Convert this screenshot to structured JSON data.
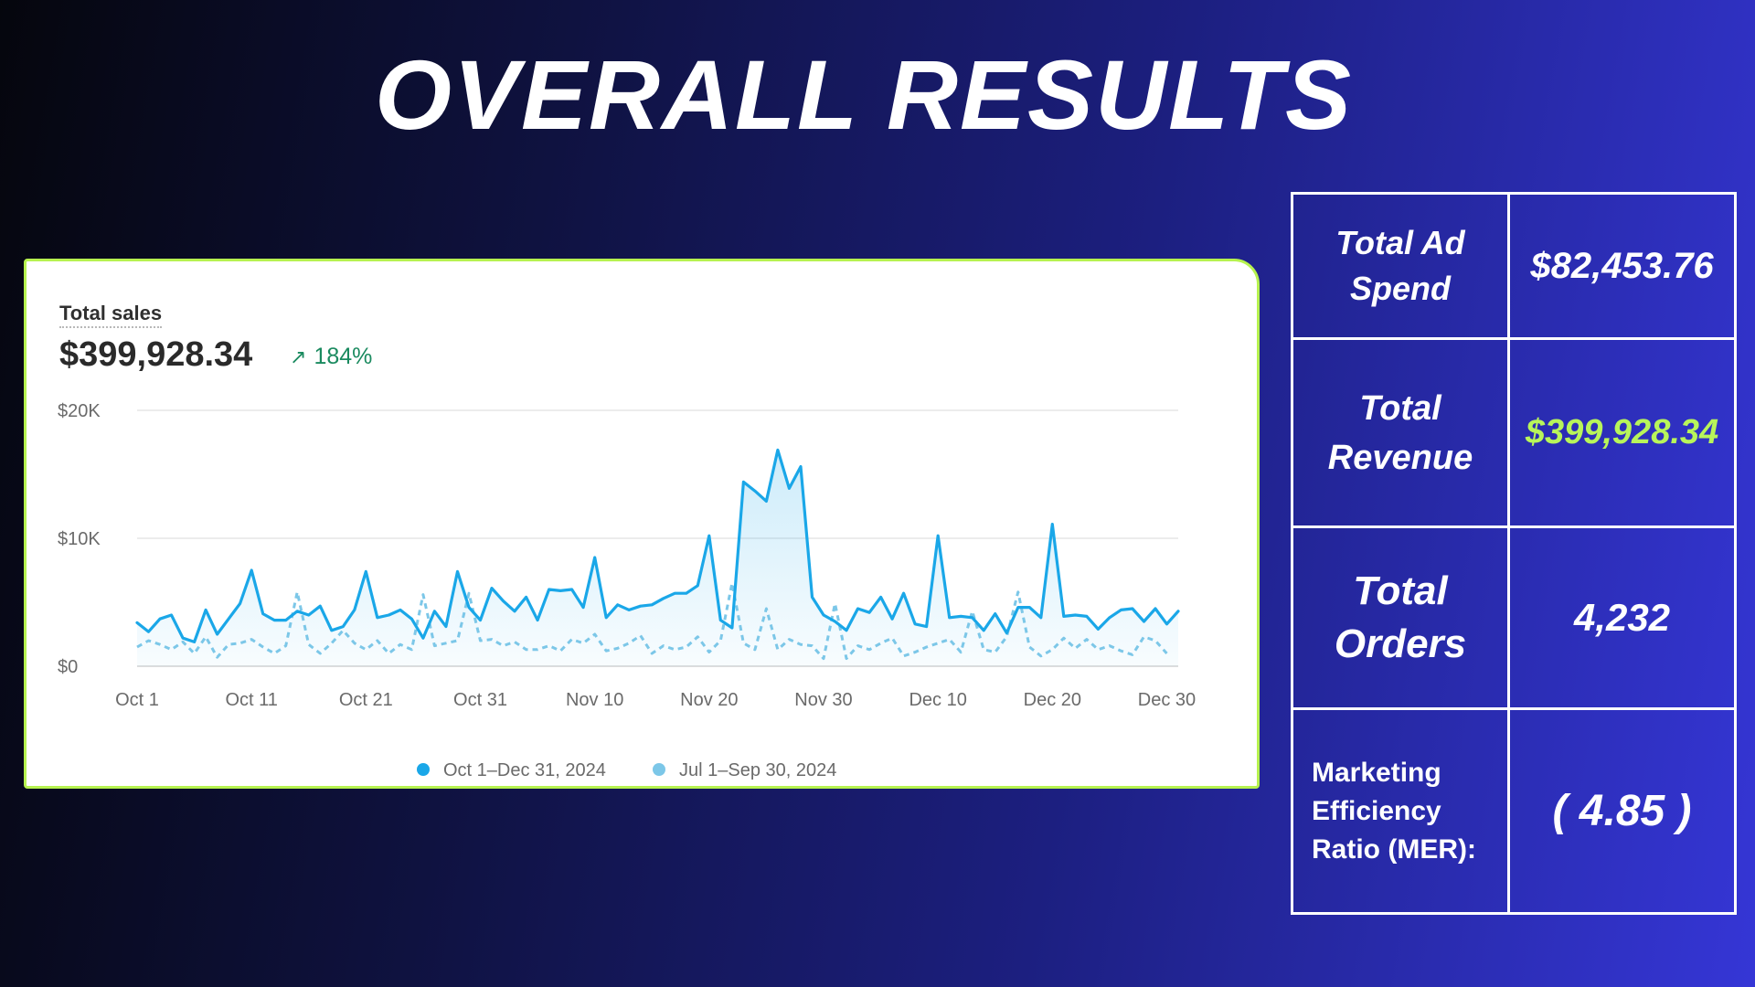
{
  "page": {
    "title": "OVERALL RESULTS"
  },
  "card": {
    "label": "Total sales",
    "total": "$399,928.34",
    "change": "184%"
  },
  "stats": [
    {
      "label": "Total Ad Spend",
      "value": "$82,453.76",
      "value_color": "#ffffff"
    },
    {
      "label": "Total Revenue",
      "value": "$399,928.34",
      "value_color": "#b8f55a"
    },
    {
      "label": "Total Orders",
      "value": "4,232",
      "value_color": "#ffffff"
    },
    {
      "label": "Marketing Efficiency Ratio (MER):",
      "value": "( 4.85 )",
      "value_color": "#ffffff"
    }
  ],
  "chart_data": {
    "type": "line",
    "title": "Total sales",
    "ylim": [
      0,
      20000
    ],
    "y_ticks": [
      {
        "value": 0,
        "label": "$0"
      },
      {
        "value": 10000,
        "label": "$10K"
      },
      {
        "value": 20000,
        "label": "$20K"
      }
    ],
    "x_ticks": [
      {
        "day": 0,
        "label": "Oct 1"
      },
      {
        "day": 10,
        "label": "Oct 11"
      },
      {
        "day": 20,
        "label": "Oct 21"
      },
      {
        "day": 30,
        "label": "Oct 31"
      },
      {
        "day": 40,
        "label": "Nov 10"
      },
      {
        "day": 50,
        "label": "Nov 20"
      },
      {
        "day": 60,
        "label": "Nov 30"
      },
      {
        "day": 70,
        "label": "Dec 10"
      },
      {
        "day": 80,
        "label": "Dec 20"
      },
      {
        "day": 90,
        "label": "Dec 30"
      }
    ],
    "grid": true,
    "legend_position": "bottom-center",
    "series": [
      {
        "name": "Oct 1–Dec 31, 2024",
        "color": "#1aa7e8",
        "style": "solid",
        "values": [
          3400,
          2700,
          3700,
          4000,
          2200,
          1900,
          4400,
          2500,
          3700,
          4900,
          7500,
          4100,
          3600,
          3600,
          4300,
          4000,
          4700,
          2800,
          3100,
          4400,
          7400,
          3800,
          4000,
          4400,
          3700,
          2200,
          4300,
          3100,
          7400,
          4600,
          3600,
          6100,
          5100,
          4300,
          5400,
          3600,
          6000,
          5900,
          6000,
          4600,
          8500,
          3800,
          4800,
          4400,
          4700,
          4800,
          5300,
          5700,
          5700,
          6300,
          10200,
          3600,
          3000,
          14400,
          13700,
          12900,
          16900,
          13900,
          15600,
          5400,
          4000,
          3500,
          2800,
          4500,
          4200,
          5400,
          3700,
          5700,
          3300,
          3100,
          10200,
          3800,
          3900,
          3800,
          2800,
          4100,
          2600,
          4600,
          4600,
          3800,
          11100,
          3900,
          4000,
          3900,
          2900,
          3800,
          4400,
          4500,
          3500,
          4500,
          3300,
          4300
        ]
      },
      {
        "name": "Jul 1–Sep 30, 2024",
        "color": "#7cc7e8",
        "style": "dashed",
        "values": [
          1500,
          2000,
          1700,
          1300,
          1900,
          1000,
          2300,
          700,
          1700,
          1800,
          2100,
          1500,
          1000,
          1600,
          5800,
          1700,
          1000,
          1800,
          2800,
          1800,
          1300,
          2000,
          1000,
          1700,
          1300,
          5600,
          1600,
          1800,
          2000,
          5700,
          2000,
          2100,
          1600,
          1900,
          1300,
          1300,
          1600,
          1200,
          2100,
          1800,
          2500,
          1200,
          1400,
          1800,
          2400,
          1000,
          1600,
          1300,
          1500,
          2300,
          1100,
          2000,
          6500,
          1800,
          1300,
          4500,
          1300,
          2100,
          1700,
          1600,
          600,
          4900,
          600,
          1600,
          1300,
          1800,
          2200,
          800,
          1100,
          1500,
          1800,
          2100,
          1100,
          4300,
          1300,
          1100,
          2300,
          5800,
          1500,
          800,
          1300,
          2200,
          1400,
          2100,
          1300,
          1600,
          1200,
          900,
          2300,
          2000,
          1000
        ]
      }
    ]
  }
}
